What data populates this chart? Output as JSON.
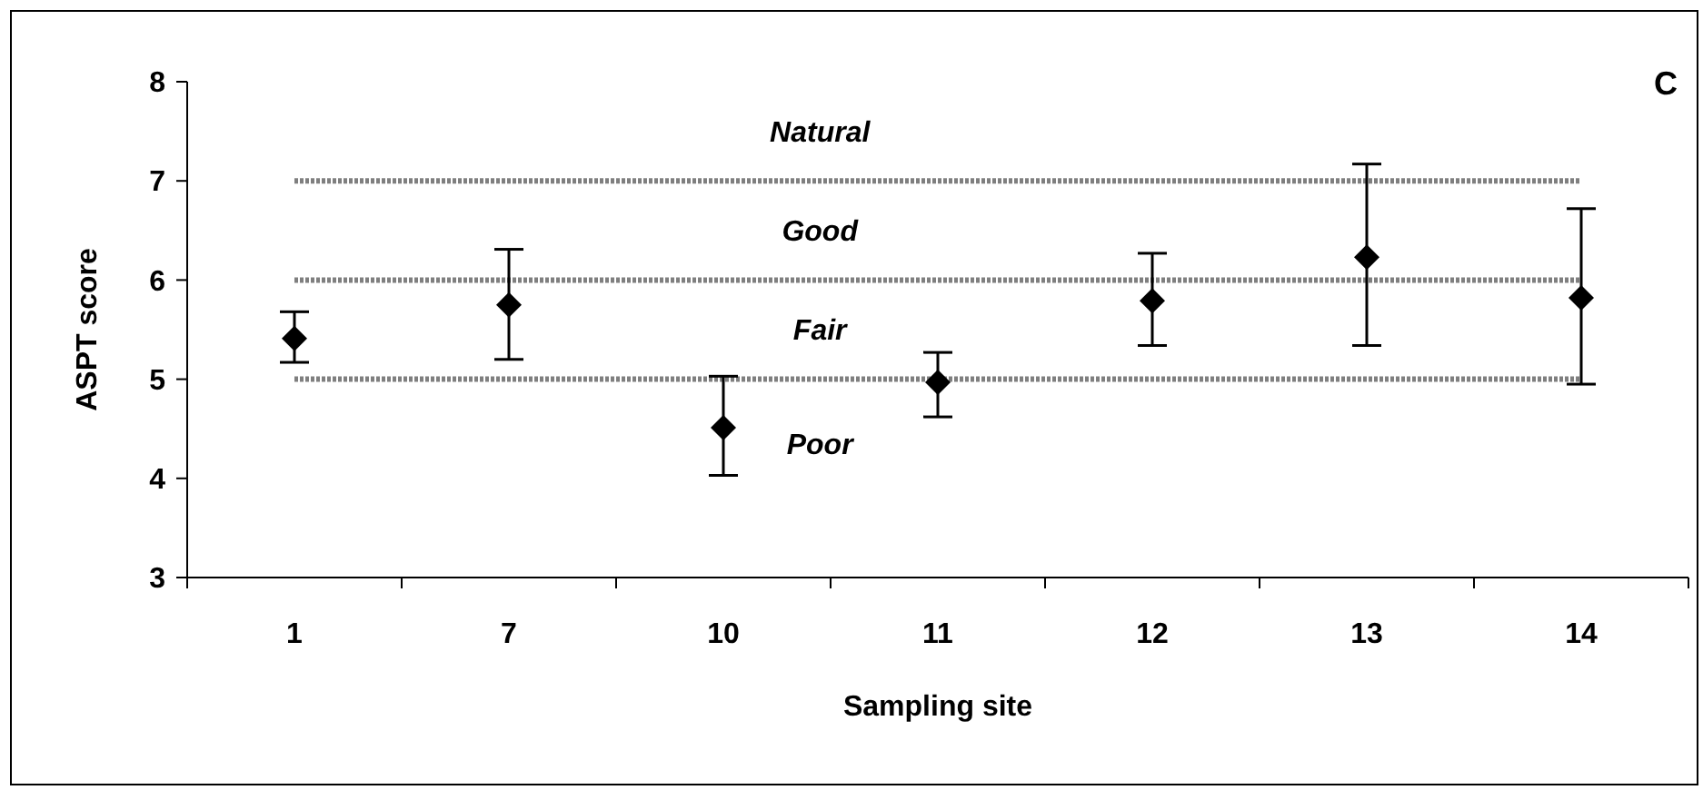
{
  "chart_data": {
    "type": "scatter",
    "xlabel": "Sampling site",
    "ylabel": "ASPT score",
    "categories": [
      "1",
      "7",
      "10",
      "11",
      "12",
      "13",
      "14"
    ],
    "series": [
      {
        "color": "#000000",
        "values": [
          5.41,
          5.75,
          4.51,
          4.97,
          5.79,
          6.23,
          5.82
        ],
        "errors": [
          [
            5.17,
            5.68
          ],
          [
            5.2,
            6.31
          ],
          [
            4.03,
            5.03
          ],
          [
            4.62,
            5.27
          ],
          [
            5.34,
            6.27
          ],
          [
            5.34,
            7.17
          ],
          [
            4.95,
            6.72
          ]
        ]
      }
    ],
    "ylim": [
      3,
      8
    ],
    "yticks": [
      3,
      4,
      5,
      6,
      7,
      8
    ],
    "grid": false,
    "marker": "diamond",
    "ref_lines": [
      {
        "axis": "y",
        "value": 7,
        "color": "#7f7f7f",
        "line_style": "dotted"
      },
      {
        "axis": "y",
        "value": 6,
        "color": "#7f7f7f",
        "line_style": "dotted"
      },
      {
        "axis": "y",
        "value": 5,
        "color": "#7f7f7f",
        "line_style": "dotted"
      }
    ],
    "annotations": [
      "Natural",
      "Good",
      "Fair",
      "Poor",
      "C"
    ]
  }
}
